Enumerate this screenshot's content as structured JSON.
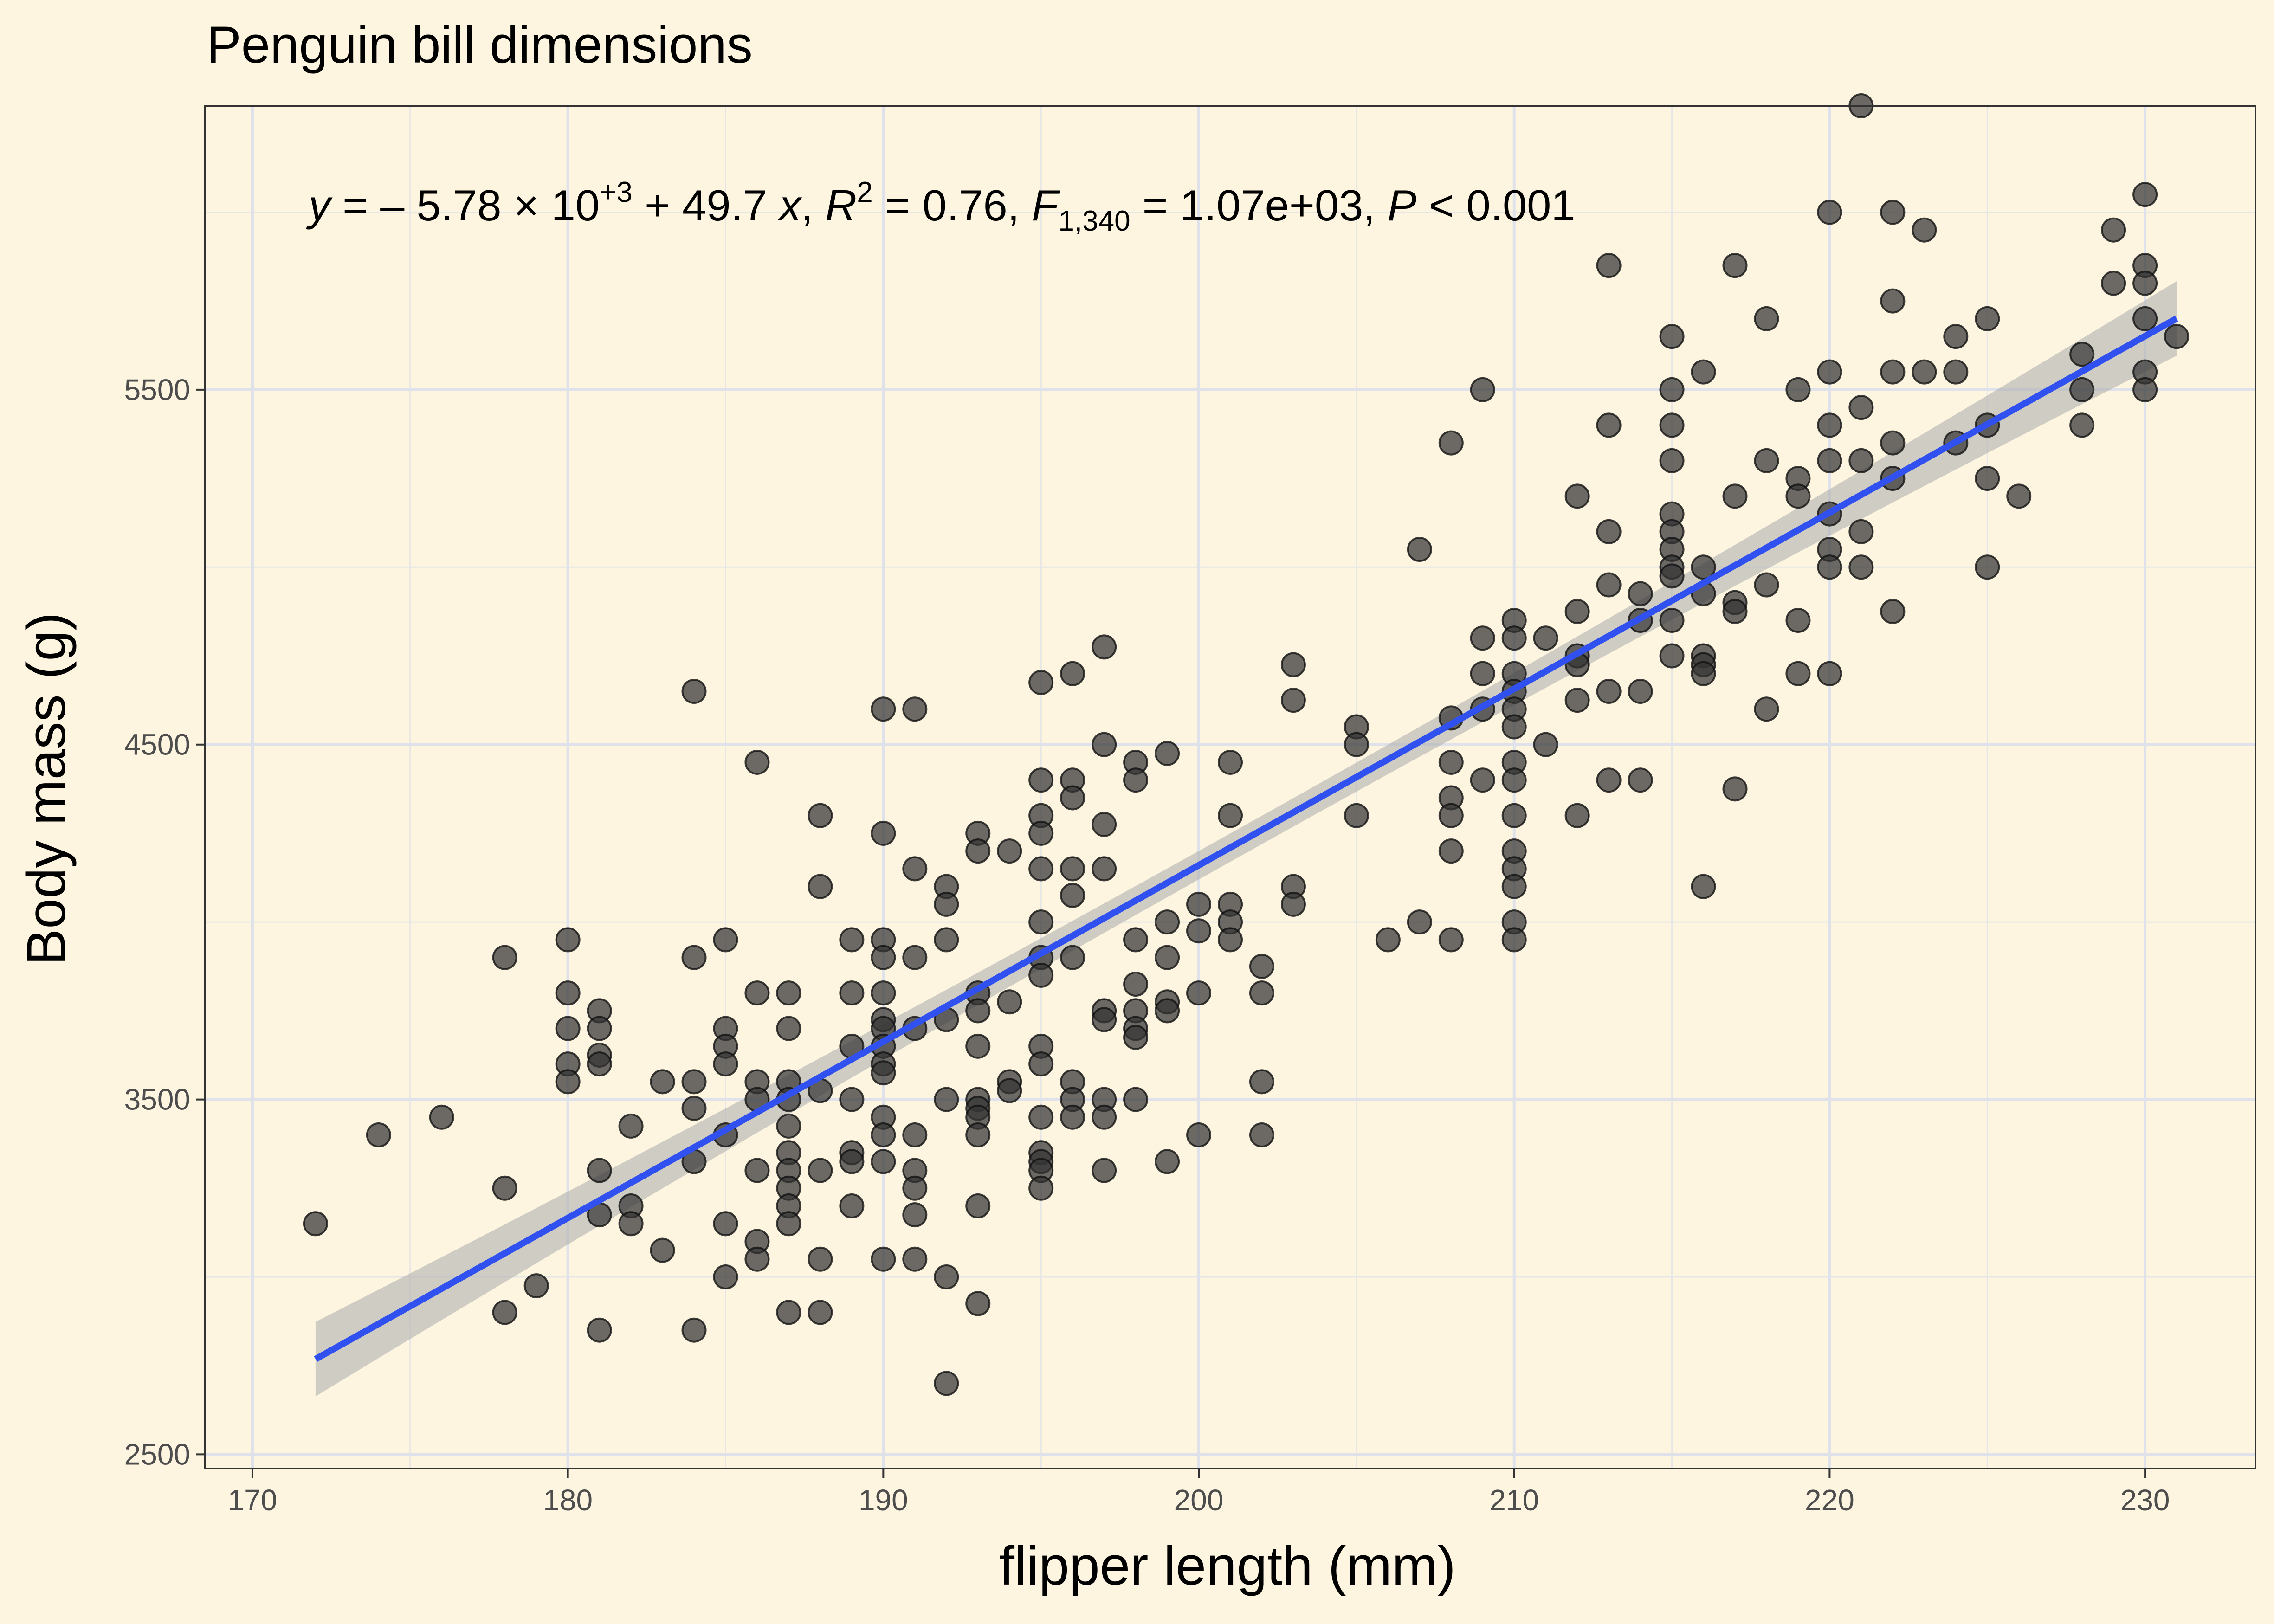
{
  "chart_data": {
    "type": "scatter",
    "title": "Penguin bill dimensions",
    "xlabel": "flipper length (mm)",
    "ylabel": "Body mass (g)",
    "xlim": [
      168.5,
      233.5
    ],
    "ylim": [
      2460,
      6300
    ],
    "x_ticks": [
      170,
      180,
      190,
      200,
      210,
      220,
      230
    ],
    "y_ticks": [
      2500,
      3500,
      4500,
      5500
    ],
    "x_tick_labels": [
      "170",
      "180",
      "190",
      "200",
      "210",
      "220",
      "230"
    ],
    "y_tick_labels": [
      "2500",
      "3500",
      "4500",
      "5500"
    ],
    "grid": true,
    "background_color": "#fdf5e0",
    "point_color": "#333333",
    "line_color": "#3050f0",
    "band_color": "#b0b0b0",
    "annotation": {
      "y": "y",
      "eq": " = – 5.78 × 10",
      "exp": "+3",
      "rest": " + 49.7 ",
      "x": "x",
      "r_sep": ", ",
      "R": "R",
      "r_exp": "2",
      "r_val": " = 0.76, ",
      "F": "F",
      "f_sub": "1,340",
      "f_val": " = 1.07e+03, ",
      "P": "P",
      "p_val": " < 0.001"
    },
    "fit": {
      "intercept": -5780,
      "slope": 49.7,
      "x_range": [
        172,
        231
      ],
      "ci_low": 105,
      "ci_mid": 40
    },
    "points": [
      [
        172,
        3150
      ],
      [
        174,
        3400
      ],
      [
        176,
        3450
      ],
      [
        178,
        3900
      ],
      [
        178,
        3250
      ],
      [
        178,
        2900
      ],
      [
        179,
        2975
      ],
      [
        180,
        3950
      ],
      [
        180,
        3800
      ],
      [
        180,
        3700
      ],
      [
        180,
        3600
      ],
      [
        180,
        3550
      ],
      [
        181,
        3750
      ],
      [
        181,
        3700
      ],
      [
        181,
        3625
      ],
      [
        181,
        3600
      ],
      [
        181,
        3300
      ],
      [
        181,
        3175
      ],
      [
        181,
        2850
      ],
      [
        182,
        3425
      ],
      [
        182,
        3200
      ],
      [
        182,
        3150
      ],
      [
        183,
        3550
      ],
      [
        183,
        3075
      ],
      [
        184,
        4650
      ],
      [
        184,
        3900
      ],
      [
        184,
        3550
      ],
      [
        184,
        3475
      ],
      [
        184,
        3325
      ],
      [
        184,
        2850
      ],
      [
        185,
        3950
      ],
      [
        185,
        3700
      ],
      [
        185,
        3650
      ],
      [
        185,
        3600
      ],
      [
        185,
        3400
      ],
      [
        185,
        3150
      ],
      [
        185,
        3000
      ],
      [
        186,
        4450
      ],
      [
        186,
        3800
      ],
      [
        186,
        3550
      ],
      [
        186,
        3500
      ],
      [
        186,
        3300
      ],
      [
        186,
        3100
      ],
      [
        186,
        3050
      ],
      [
        187,
        3800
      ],
      [
        187,
        3700
      ],
      [
        187,
        3550
      ],
      [
        187,
        3500
      ],
      [
        187,
        3425
      ],
      [
        187,
        3350
      ],
      [
        187,
        3300
      ],
      [
        187,
        3250
      ],
      [
        187,
        3200
      ],
      [
        187,
        3150
      ],
      [
        187,
        2900
      ],
      [
        188,
        4300
      ],
      [
        188,
        4100
      ],
      [
        188,
        3525
      ],
      [
        188,
        3300
      ],
      [
        188,
        3050
      ],
      [
        188,
        2900
      ],
      [
        189,
        3950
      ],
      [
        189,
        3800
      ],
      [
        189,
        3650
      ],
      [
        189,
        3500
      ],
      [
        189,
        3350
      ],
      [
        189,
        3325
      ],
      [
        189,
        3200
      ],
      [
        190,
        4600
      ],
      [
        190,
        4250
      ],
      [
        190,
        3950
      ],
      [
        190,
        3900
      ],
      [
        190,
        3800
      ],
      [
        190,
        3725
      ],
      [
        190,
        3700
      ],
      [
        190,
        3650
      ],
      [
        190,
        3600
      ],
      [
        190,
        3575
      ],
      [
        190,
        3450
      ],
      [
        190,
        3400
      ],
      [
        190,
        3325
      ],
      [
        190,
        3050
      ],
      [
        191,
        4600
      ],
      [
        191,
        4150
      ],
      [
        191,
        3900
      ],
      [
        191,
        3700
      ],
      [
        191,
        3400
      ],
      [
        191,
        3300
      ],
      [
        191,
        3250
      ],
      [
        191,
        3175
      ],
      [
        191,
        3050
      ],
      [
        192,
        4100
      ],
      [
        192,
        4050
      ],
      [
        192,
        3950
      ],
      [
        192,
        3725
      ],
      [
        192,
        3500
      ],
      [
        192,
        3000
      ],
      [
        192,
        2700
      ],
      [
        193,
        4250
      ],
      [
        193,
        4200
      ],
      [
        193,
        3800
      ],
      [
        193,
        3750
      ],
      [
        193,
        3650
      ],
      [
        193,
        3500
      ],
      [
        193,
        3475
      ],
      [
        193,
        3450
      ],
      [
        193,
        3400
      ],
      [
        193,
        3200
      ],
      [
        193,
        2925
      ],
      [
        194,
        4200
      ],
      [
        194,
        3775
      ],
      [
        194,
        3550
      ],
      [
        194,
        3525
      ],
      [
        195,
        4675
      ],
      [
        195,
        4400
      ],
      [
        195,
        4300
      ],
      [
        195,
        4250
      ],
      [
        195,
        4150
      ],
      [
        195,
        4000
      ],
      [
        195,
        3900
      ],
      [
        195,
        3850
      ],
      [
        195,
        3650
      ],
      [
        195,
        3600
      ],
      [
        195,
        3450
      ],
      [
        195,
        3350
      ],
      [
        195,
        3325
      ],
      [
        195,
        3300
      ],
      [
        195,
        3250
      ],
      [
        196,
        4700
      ],
      [
        196,
        4400
      ],
      [
        196,
        4350
      ],
      [
        196,
        4150
      ],
      [
        196,
        4075
      ],
      [
        196,
        3900
      ],
      [
        196,
        3550
      ],
      [
        196,
        3500
      ],
      [
        196,
        3450
      ],
      [
        197,
        4775
      ],
      [
        197,
        4500
      ],
      [
        197,
        4275
      ],
      [
        197,
        4150
      ],
      [
        197,
        3750
      ],
      [
        197,
        3725
      ],
      [
        197,
        3500
      ],
      [
        197,
        3450
      ],
      [
        197,
        3300
      ],
      [
        198,
        4450
      ],
      [
        198,
        4400
      ],
      [
        198,
        3950
      ],
      [
        198,
        3825
      ],
      [
        198,
        3750
      ],
      [
        198,
        3700
      ],
      [
        198,
        3675
      ],
      [
        198,
        3500
      ],
      [
        199,
        4475
      ],
      [
        199,
        4000
      ],
      [
        199,
        3900
      ],
      [
        199,
        3775
      ],
      [
        199,
        3750
      ],
      [
        199,
        3325
      ],
      [
        200,
        4050
      ],
      [
        200,
        3975
      ],
      [
        200,
        3800
      ],
      [
        200,
        3400
      ],
      [
        201,
        4450
      ],
      [
        201,
        4300
      ],
      [
        201,
        4050
      ],
      [
        201,
        4000
      ],
      [
        201,
        3950
      ],
      [
        202,
        3875
      ],
      [
        202,
        3800
      ],
      [
        202,
        3550
      ],
      [
        202,
        3400
      ],
      [
        203,
        4725
      ],
      [
        203,
        4625
      ],
      [
        203,
        4100
      ],
      [
        203,
        4050
      ],
      [
        205,
        4550
      ],
      [
        205,
        4500
      ],
      [
        205,
        4300
      ],
      [
        206,
        3950
      ],
      [
        207,
        5050
      ],
      [
        207,
        4000
      ],
      [
        208,
        5350
      ],
      [
        208,
        4575
      ],
      [
        208,
        4450
      ],
      [
        208,
        4350
      ],
      [
        208,
        4300
      ],
      [
        208,
        4200
      ],
      [
        208,
        3950
      ],
      [
        209,
        5500
      ],
      [
        209,
        4800
      ],
      [
        209,
        4700
      ],
      [
        209,
        4600
      ],
      [
        209,
        4400
      ],
      [
        210,
        4850
      ],
      [
        210,
        4800
      ],
      [
        210,
        4700
      ],
      [
        210,
        4650
      ],
      [
        210,
        4600
      ],
      [
        210,
        4550
      ],
      [
        210,
        4450
      ],
      [
        210,
        4400
      ],
      [
        210,
        4300
      ],
      [
        210,
        4200
      ],
      [
        210,
        4150
      ],
      [
        210,
        4100
      ],
      [
        210,
        4000
      ],
      [
        210,
        3950
      ],
      [
        211,
        4800
      ],
      [
        211,
        4500
      ],
      [
        212,
        5200
      ],
      [
        212,
        4875
      ],
      [
        212,
        4750
      ],
      [
        212,
        4725
      ],
      [
        212,
        4625
      ],
      [
        212,
        4300
      ],
      [
        213,
        5850
      ],
      [
        213,
        5400
      ],
      [
        213,
        5100
      ],
      [
        213,
        4950
      ],
      [
        213,
        4650
      ],
      [
        213,
        4400
      ],
      [
        214,
        4925
      ],
      [
        214,
        4850
      ],
      [
        214,
        4650
      ],
      [
        214,
        4400
      ],
      [
        215,
        5650
      ],
      [
        215,
        5500
      ],
      [
        215,
        5400
      ],
      [
        215,
        5300
      ],
      [
        215,
        5150
      ],
      [
        215,
        5100
      ],
      [
        215,
        5050
      ],
      [
        215,
        5000
      ],
      [
        215,
        4975
      ],
      [
        215,
        4850
      ],
      [
        215,
        4750
      ],
      [
        216,
        5550
      ],
      [
        216,
        5000
      ],
      [
        216,
        4925
      ],
      [
        216,
        4750
      ],
      [
        216,
        4725
      ],
      [
        216,
        4700
      ],
      [
        216,
        4100
      ],
      [
        217,
        5850
      ],
      [
        217,
        5200
      ],
      [
        217,
        4900
      ],
      [
        217,
        4875
      ],
      [
        217,
        4375
      ],
      [
        218,
        5700
      ],
      [
        218,
        5300
      ],
      [
        218,
        4950
      ],
      [
        218,
        4600
      ],
      [
        219,
        5500
      ],
      [
        219,
        5250
      ],
      [
        219,
        5200
      ],
      [
        219,
        4850
      ],
      [
        219,
        4700
      ],
      [
        220,
        6000
      ],
      [
        220,
        5550
      ],
      [
        220,
        5400
      ],
      [
        220,
        5300
      ],
      [
        220,
        5150
      ],
      [
        220,
        5050
      ],
      [
        220,
        5000
      ],
      [
        220,
        4700
      ],
      [
        221,
        6300
      ],
      [
        221,
        5450
      ],
      [
        221,
        5300
      ],
      [
        221,
        5100
      ],
      [
        221,
        5000
      ],
      [
        222,
        6000
      ],
      [
        222,
        5750
      ],
      [
        222,
        5550
      ],
      [
        222,
        5350
      ],
      [
        222,
        5250
      ],
      [
        222,
        4875
      ],
      [
        223,
        5950
      ],
      [
        223,
        5550
      ],
      [
        224,
        5650
      ],
      [
        224,
        5550
      ],
      [
        224,
        5350
      ],
      [
        225,
        5700
      ],
      [
        225,
        5400
      ],
      [
        225,
        5250
      ],
      [
        225,
        5000
      ],
      [
        226,
        5200
      ],
      [
        228,
        5600
      ],
      [
        228,
        5500
      ],
      [
        228,
        5400
      ],
      [
        229,
        5950
      ],
      [
        229,
        5800
      ],
      [
        230,
        6050
      ],
      [
        230,
        5850
      ],
      [
        230,
        5800
      ],
      [
        230,
        5700
      ],
      [
        230,
        5550
      ],
      [
        230,
        5500
      ],
      [
        231,
        5650
      ]
    ]
  }
}
